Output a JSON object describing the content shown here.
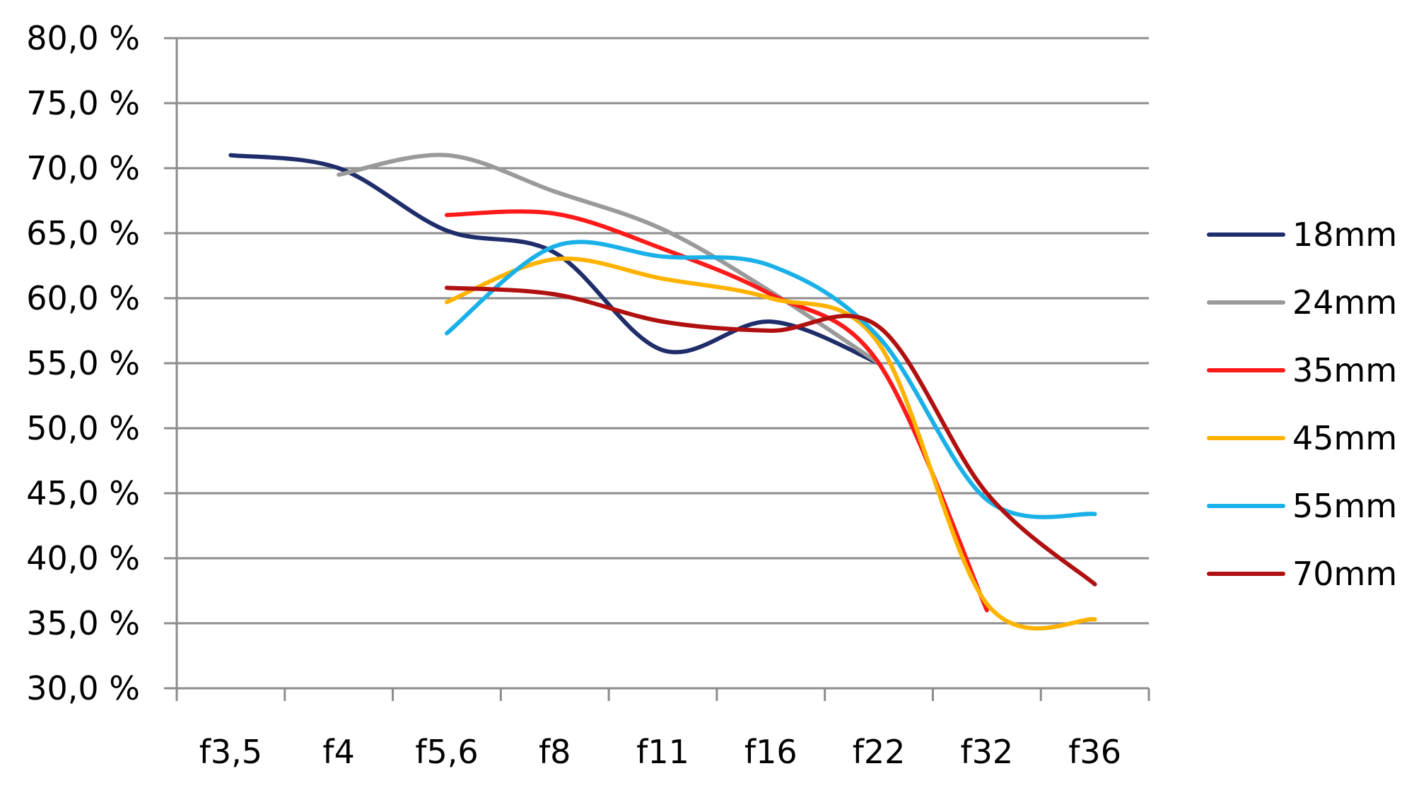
{
  "chart_data": {
    "type": "line",
    "title": "",
    "xlabel": "",
    "ylabel": "",
    "categories": [
      "f3,5",
      "f4",
      "f5,6",
      "f8",
      "f11",
      "f16",
      "f22",
      "f32",
      "f36"
    ],
    "ylim": [
      30.0,
      80.0
    ],
    "yticks": [
      30,
      35,
      40,
      45,
      50,
      55,
      60,
      65,
      70,
      75,
      80
    ],
    "ytick_labels": [
      "30,0 %",
      "35,0 %",
      "40,0 %",
      "45,0 %",
      "50,0 %",
      "55,0 %",
      "60,0 %",
      "65,0 %",
      "70,0 %",
      "75,0 %",
      "80,0 %"
    ],
    "grid": "horizontal",
    "legend_position": "right",
    "smooth": true,
    "series": [
      {
        "name": "18mm",
        "color": "#1f2d6b",
        "values": [
          71.0,
          70.0,
          65.2,
          63.5,
          56.0,
          58.2,
          55.0,
          null,
          null
        ]
      },
      {
        "name": "24mm",
        "color": "#9a9a9a",
        "values": [
          null,
          69.5,
          71.0,
          68.2,
          65.3,
          60.5,
          55.0,
          null,
          null
        ]
      },
      {
        "name": "35mm",
        "color": "#ff1a1a",
        "values": [
          null,
          null,
          66.4,
          66.5,
          63.8,
          60.3,
          55.0,
          36.0,
          null
        ]
      },
      {
        "name": "45mm",
        "color": "#ffb300",
        "values": [
          null,
          null,
          59.7,
          63.0,
          61.5,
          60.0,
          56.5,
          36.5,
          35.3
        ]
      },
      {
        "name": "55mm",
        "color": "#1ab0e8",
        "values": [
          null,
          null,
          57.3,
          64.0,
          63.2,
          62.5,
          57.0,
          44.5,
          43.4
        ]
      },
      {
        "name": "70mm",
        "color": "#b01010",
        "values": [
          null,
          null,
          60.8,
          60.3,
          58.2,
          57.5,
          57.8,
          45.0,
          38.0
        ]
      }
    ]
  }
}
